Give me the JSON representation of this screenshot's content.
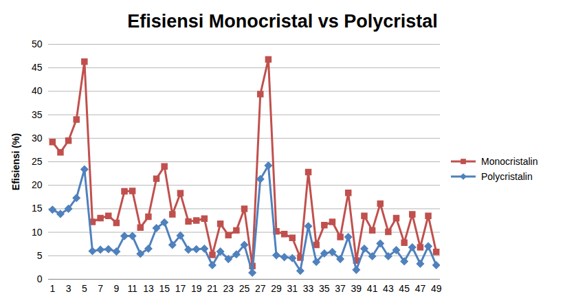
{
  "chart_data": {
    "type": "line",
    "title": "Efisiensi Monocristal vs Polycristal",
    "y_label": "Efisiensi (%)",
    "categories": [
      1,
      null,
      3,
      null,
      5,
      null,
      7,
      null,
      9,
      null,
      11,
      null,
      13,
      null,
      15,
      null,
      17,
      null,
      19,
      null,
      21,
      null,
      23,
      null,
      25,
      null,
      27,
      null,
      29,
      null,
      31,
      null,
      33,
      null,
      35,
      null,
      37,
      null,
      39,
      null,
      41,
      null,
      43,
      null,
      45,
      null,
      47,
      null,
      49
    ],
    "series": [
      {
        "name": "Monocristalin",
        "color": "#c0504d",
        "marker": "square",
        "values": [
          29.2,
          27,
          29.5,
          34,
          46.3,
          12.2,
          13,
          13.5,
          12,
          18.7,
          18.8,
          11,
          13.3,
          21.4,
          24,
          13.8,
          18.3,
          12.3,
          12.5,
          12.9,
          5.2,
          11.8,
          9.4,
          10.4,
          15,
          2.8,
          39.4,
          46.8,
          10.2,
          9.6,
          8.8,
          4.6,
          22.8,
          7.3,
          11.5,
          12.2,
          9,
          18.4,
          4,
          13.5,
          10.4,
          16.1,
          10.1,
          13,
          7.8,
          13.8,
          6.8,
          13.5,
          5.8
        ]
      },
      {
        "name": "Polycristalin",
        "color": "#4f81bd",
        "marker": "diamond",
        "values": [
          14.8,
          13.9,
          15,
          17.3,
          23.4,
          6,
          6.3,
          6.4,
          5.9,
          9.2,
          9.2,
          5.4,
          6.5,
          10.9,
          12.1,
          7.3,
          9.3,
          6.3,
          6.4,
          6.5,
          3,
          5.9,
          4.3,
          5.3,
          7.3,
          1.4,
          21.3,
          24.2,
          5.1,
          4.7,
          4.5,
          1.8,
          11.3,
          3.7,
          5.5,
          5.8,
          4.3,
          9,
          2,
          6.5,
          4.9,
          7.6,
          4.9,
          6.2,
          3.8,
          6.8,
          3.3,
          7,
          3
        ]
      }
    ],
    "ylim": [
      0,
      50
    ],
    "yticks": [
      0,
      5,
      10,
      15,
      20,
      25,
      30,
      35,
      40,
      45,
      50
    ],
    "grid": true,
    "legend": "right"
  }
}
